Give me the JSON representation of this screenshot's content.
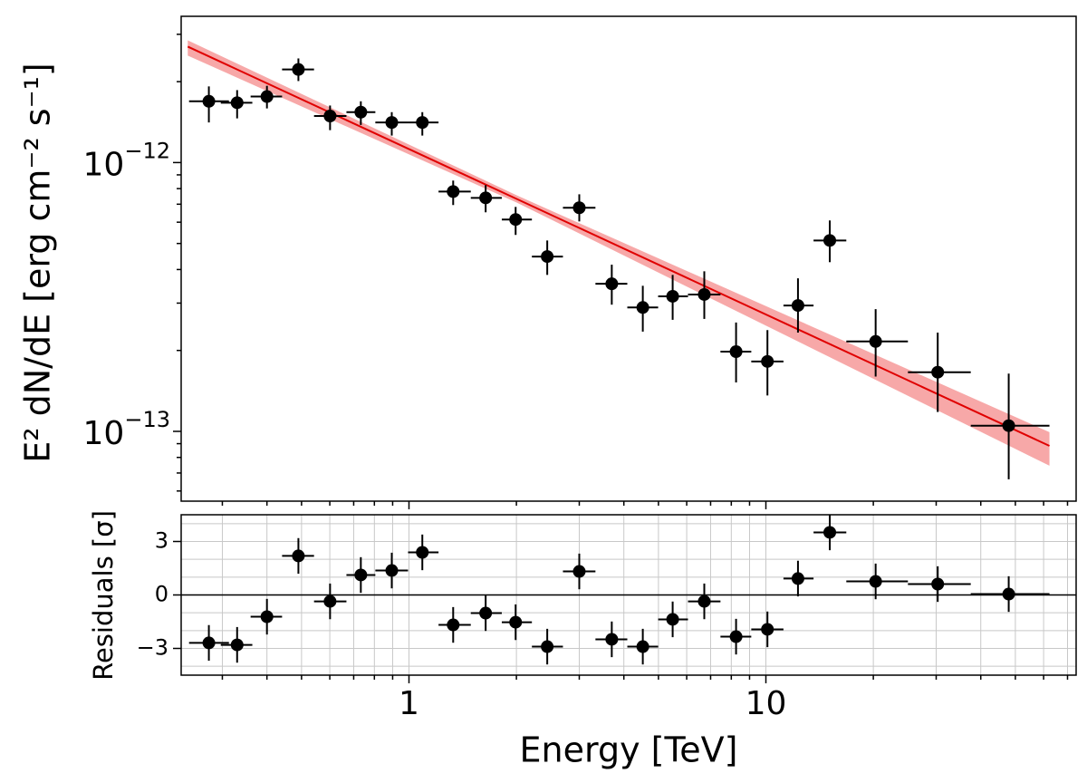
{
  "chart_data": {
    "type": "errorbar",
    "xlabel": "Energy [TeV]",
    "xscale": "log",
    "xlim": [
      0.23,
      74
    ],
    "xticks": [
      1,
      10
    ],
    "x": [
      0.275,
      0.33,
      0.4,
      0.49,
      0.601,
      0.733,
      0.895,
      1.09,
      1.33,
      1.64,
      1.99,
      2.44,
      3.0,
      3.7,
      4.52,
      5.48,
      6.72,
      8.25,
      10.1,
      12.3,
      15.1,
      20.3,
      30.3,
      47.9
    ],
    "x_low": [
      0.242,
      0.297,
      0.36,
      0.441,
      0.542,
      0.668,
      0.805,
      0.994,
      1.21,
      1.49,
      1.82,
      2.21,
      2.7,
      3.33,
      4.09,
      4.99,
      6.05,
      7.46,
      9.1,
      11.2,
      13.6,
      16.8,
      25.0,
      37.5
    ],
    "x_high": [
      0.313,
      0.364,
      0.441,
      0.542,
      0.668,
      0.805,
      0.994,
      1.21,
      1.49,
      1.82,
      2.21,
      2.7,
      3.33,
      4.09,
      4.99,
      6.05,
      7.46,
      9.1,
      11.2,
      13.6,
      16.8,
      25.0,
      37.5,
      62.3
    ],
    "flux": {
      "ylabel": "E² dN/dE [erg cm⁻² s⁻¹]",
      "yscale": "log",
      "ylim": [
        5.5e-14,
        3.5e-12
      ],
      "yticks": [
        {
          "value": 1e-13,
          "label": "10",
          "exponent": "−13"
        },
        {
          "value": 1e-12,
          "label": "10",
          "exponent": "−12"
        }
      ],
      "color": "#000000",
      "y": [
        1.69e-12,
        1.67e-12,
        1.76e-12,
        2.22e-12,
        1.49e-12,
        1.54e-12,
        1.41e-12,
        1.41e-12,
        7.8e-13,
        7.39e-13,
        6.14e-13,
        4.47e-13,
        6.79e-13,
        3.54e-13,
        2.89e-13,
        3.18e-13,
        3.23e-13,
        1.98e-13,
        1.82e-13,
        2.94e-13,
        5.13e-13,
        2.16e-13,
        1.66e-13,
        1.05e-13
      ],
      "y_low": [
        1.41e-12,
        1.46e-12,
        1.59e-12,
        2.01e-12,
        1.32e-12,
        1.38e-12,
        1.26e-12,
        1.26e-12,
        6.95e-13,
        6.53e-13,
        5.38e-13,
        3.82e-13,
        6.04e-13,
        2.96e-13,
        2.35e-13,
        2.6e-13,
        2.62e-13,
        1.52e-13,
        1.36e-13,
        2.33e-13,
        4.26e-13,
        1.6e-13,
        1.18e-13,
        6.63e-14
      ],
      "y_high": [
        1.92e-12,
        1.86e-12,
        1.93e-12,
        2.44e-12,
        1.63e-12,
        1.69e-12,
        1.54e-12,
        1.54e-12,
        8.57e-13,
        8.24e-13,
        6.84e-13,
        5.13e-13,
        7.62e-13,
        4.17e-13,
        3.48e-13,
        3.82e-13,
        3.94e-13,
        2.54e-13,
        2.38e-13,
        3.71e-13,
        6.09e-13,
        2.85e-13,
        2.33e-13,
        1.64e-13
      ],
      "model": {
        "color": "#e00000",
        "band_color": "#f7a8a8",
        "x": [
          0.24,
          2,
          62.3
        ],
        "y": [
          2.7e-12,
          7.33e-13,
          8.83e-14
        ],
        "band_low": [
          2.5e-12,
          7.11e-13,
          7.45e-14
        ],
        "band_high": [
          2.85e-12,
          7.56e-13,
          9.93e-14
        ]
      }
    },
    "residuals": {
      "ylabel": "Residuals [σ]",
      "ylim": [
        -4.5,
        4.5
      ],
      "yticks": [
        {
          "value": -3,
          "label": "−3"
        },
        0,
        3
      ],
      "yminor": [
        -4,
        -2,
        -1,
        1,
        2,
        4
      ],
      "grid": true,
      "zero_line": 0,
      "color": "#000000",
      "y": [
        -2.69,
        -2.8,
        -1.22,
        2.19,
        -0.36,
        1.12,
        1.37,
        2.39,
        -1.68,
        -1.02,
        -1.53,
        -2.9,
        1.32,
        -2.49,
        -2.9,
        -1.37,
        -0.36,
        -2.34,
        -1.93,
        0.92,
        3.51,
        0.76,
        0.61,
        0.05
      ],
      "yerr": [
        1,
        1,
        1,
        1,
        1,
        1,
        1,
        1,
        1,
        1,
        1,
        1,
        1,
        1,
        1,
        1,
        1,
        1,
        1,
        1,
        1,
        1,
        1,
        1
      ]
    }
  }
}
